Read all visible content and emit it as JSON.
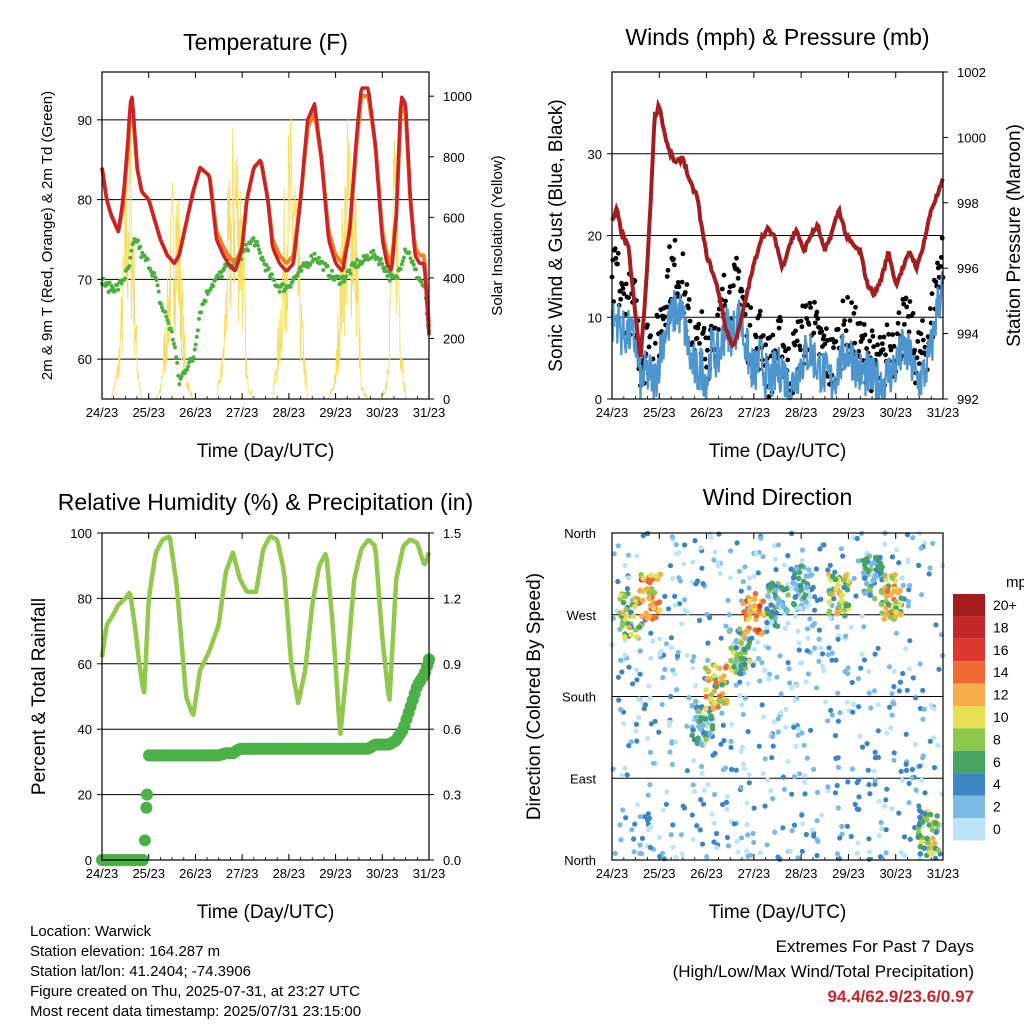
{
  "colors": {
    "temp_red": "#cc2229",
    "temp_orange": "#f57f20",
    "dewpoint_green": "#4daf3f",
    "solar_yellow": "#f7de63",
    "wind_blue": "#4c95cf",
    "gust_black": "#000000",
    "pressure_maroon": "#a31e21",
    "rh_green": "#92c84b",
    "precip_green": "#4bb045",
    "extremes_red": "#c3262b"
  },
  "x_ticks": [
    "24/23",
    "25/23",
    "26/23",
    "27/23",
    "28/23",
    "29/23",
    "30/23",
    "31/23"
  ],
  "chart_data": [
    {
      "type": "line",
      "title": "Temperature (F)",
      "xlabel": "Time (Day/UTC)",
      "ylabel": "2m & 9m T (Red, Orange) & 2m Td (Green)",
      "ylabel_right": "Solar Insolation (Yellow)",
      "ylim": [
        55,
        96
      ],
      "ylim_right": [
        0,
        1080
      ],
      "yticks": [
        60,
        70,
        80,
        90
      ],
      "yticks_right": [
        0,
        200,
        400,
        600,
        800,
        1000
      ],
      "x": [
        0,
        0.1,
        0.2,
        0.35,
        0.45,
        0.55,
        0.6,
        0.65,
        0.75,
        0.85,
        1.0,
        1.15,
        1.25,
        1.4,
        1.55,
        1.65,
        1.8,
        1.95,
        2.1,
        2.3,
        2.45,
        2.6,
        2.7,
        2.85,
        3.0,
        3.1,
        3.25,
        3.4,
        3.55,
        3.65,
        3.8,
        3.95,
        4.1,
        4.25,
        4.4,
        4.55,
        4.7,
        4.85,
        5.0,
        5.15,
        5.3,
        5.45,
        5.55,
        5.7,
        5.85,
        6.0,
        6.1,
        6.2,
        6.3,
        6.4,
        6.5,
        6.6,
        6.7,
        6.8,
        6.9,
        7.0
      ],
      "series": [
        {
          "name": "2m T",
          "color": "#cc2229",
          "values": [
            84,
            80,
            78,
            76,
            80,
            87,
            92,
            93,
            84,
            81,
            80,
            77,
            75,
            73,
            72,
            73,
            77,
            81,
            84,
            83,
            75,
            73,
            72,
            71,
            74,
            80,
            84,
            85,
            80,
            74,
            72,
            71,
            72,
            80,
            90,
            92,
            85,
            75,
            72,
            71,
            76,
            88,
            94,
            94,
            87,
            75,
            72,
            71,
            78,
            93,
            92,
            80,
            73,
            72,
            72,
            63
          ]
        },
        {
          "name": "9m T",
          "color": "#f57f20",
          "values": [
            84,
            80,
            78,
            76,
            79,
            86,
            91,
            92,
            84,
            81,
            80,
            77,
            75,
            73,
            72,
            73,
            77,
            81,
            84,
            83,
            76,
            74,
            73,
            72,
            74,
            80,
            84,
            85,
            80,
            75,
            73,
            72,
            73,
            80,
            89,
            91,
            85,
            76,
            73,
            72,
            76,
            87,
            93,
            93,
            87,
            76,
            73,
            72,
            78,
            92,
            91,
            80,
            74,
            73,
            73,
            64
          ]
        },
        {
          "name": "2m Td",
          "color": "#4daf3f",
          "values": [
            70,
            69,
            69,
            69,
            70,
            71,
            72,
            74,
            75,
            73,
            72,
            70,
            67,
            65,
            62,
            57,
            59,
            60,
            66,
            69,
            70,
            71,
            72,
            72,
            73,
            74,
            75,
            73,
            71,
            70,
            69,
            69,
            70,
            71,
            72,
            73,
            72,
            71,
            70,
            70,
            71,
            72,
            72,
            73,
            73,
            72,
            71,
            70,
            70,
            72,
            74,
            73,
            71,
            70,
            69,
            63
          ]
        },
        {
          "name": "Solar",
          "color": "#f7de63",
          "values": [
            0,
            0,
            0,
            150,
            500,
            900,
            1060,
            800,
            200,
            0,
            0,
            0,
            40,
            400,
            900,
            700,
            100,
            0,
            0,
            0,
            0,
            200,
            700,
            1050,
            800,
            100,
            0,
            0,
            0,
            0,
            300,
            900,
            1000,
            400,
            0,
            0,
            0,
            0,
            100,
            700,
            1050,
            700,
            50,
            0,
            0,
            0,
            100,
            700,
            1000,
            300,
            0,
            0,
            0,
            0,
            0,
            0
          ]
        }
      ]
    },
    {
      "type": "line",
      "title": "Winds (mph) & Pressure (mb)",
      "xlabel": "Time (Day/UTC)",
      "ylabel": "Sonic Wind & Gust (Blue, Black)",
      "ylabel_right": "Station Pressure (Maroon)",
      "ylim": [
        0,
        40
      ],
      "ylim_right": [
        992,
        1002
      ],
      "yticks": [
        0,
        10,
        20,
        30
      ],
      "yticks_right": [
        992,
        994,
        996,
        998,
        1000,
        1002
      ],
      "x": [
        0,
        0.1,
        0.2,
        0.35,
        0.5,
        0.6,
        0.7,
        0.8,
        0.9,
        1.0,
        1.1,
        1.2,
        1.35,
        1.5,
        1.65,
        1.8,
        1.9,
        2.0,
        2.1,
        2.25,
        2.4,
        2.55,
        2.7,
        2.85,
        3.0,
        3.15,
        3.3,
        3.45,
        3.6,
        3.75,
        3.9,
        4.05,
        4.2,
        4.35,
        4.5,
        4.65,
        4.8,
        4.95,
        5.1,
        5.25,
        5.4,
        5.55,
        5.7,
        5.85,
        6.0,
        6.15,
        6.3,
        6.45,
        6.6,
        6.75,
        6.9,
        7.0
      ],
      "series": [
        {
          "name": "Pressure",
          "color": "#a31e21",
          "values": [
            997.4,
            997.8,
            997.1,
            996.6,
            994.5,
            993.2,
            995.0,
            997.5,
            1000.6,
            1001.0,
            1000.2,
            999.6,
            999.2,
            999.4,
            998.6,
            998.2,
            997.2,
            996.4,
            996.0,
            995.3,
            994.2,
            993.6,
            994.2,
            995.2,
            996.1,
            996.9,
            997.2,
            996.9,
            996.0,
            996.7,
            997.2,
            996.5,
            997.0,
            997.3,
            996.5,
            997.1,
            997.8,
            997.0,
            996.7,
            996.5,
            995.5,
            995.2,
            995.7,
            996.5,
            995.5,
            996.0,
            996.5,
            996.0,
            996.8,
            997.8,
            998.3,
            998.7
          ]
        },
        {
          "name": "Wind",
          "color": "#4c95cf",
          "values": [
            9,
            10,
            8,
            8,
            7,
            2,
            3,
            3,
            2,
            5,
            8,
            9,
            11,
            10,
            5,
            3,
            4,
            2,
            6,
            5,
            9,
            8,
            10,
            6,
            3,
            5,
            2,
            3,
            4,
            1,
            3,
            5,
            6,
            4,
            3,
            2,
            4,
            6,
            5,
            3,
            3,
            2,
            2,
            3,
            4,
            6,
            5,
            2,
            3,
            6,
            12,
            14
          ]
        },
        {
          "name": "Gust",
          "color": "#000000",
          "values": [
            13,
            16,
            12,
            12,
            11,
            5,
            6,
            7,
            5,
            8,
            12,
            15,
            16,
            14,
            8,
            6,
            7,
            5,
            9,
            8,
            13,
            12,
            15,
            9,
            6,
            8,
            4,
            5,
            7,
            3,
            6,
            8,
            10,
            7,
            6,
            4,
            7,
            9,
            8,
            6,
            6,
            4,
            4,
            6,
            7,
            9,
            8,
            5,
            6,
            9,
            16,
            18
          ]
        }
      ]
    },
    {
      "type": "line",
      "title": "Relative Humidity (%) & Precipitation (in)",
      "xlabel": "Time (Day/UTC)",
      "ylabel": "Percent & Total Rainfall",
      "ylim": [
        0,
        100
      ],
      "ylim_right": [
        0,
        1.5
      ],
      "yticks": [
        0,
        20,
        40,
        60,
        80,
        100
      ],
      "yticks_right": [
        "0.0",
        "0.3",
        "0.6",
        "0.9",
        "1.2",
        "1.5"
      ],
      "x": [
        0,
        0.1,
        0.2,
        0.35,
        0.5,
        0.6,
        0.7,
        0.8,
        0.9,
        1.0,
        1.15,
        1.3,
        1.45,
        1.6,
        1.8,
        1.95,
        2.1,
        2.3,
        2.5,
        2.65,
        2.8,
        2.95,
        3.1,
        3.3,
        3.45,
        3.6,
        3.75,
        3.9,
        4.05,
        4.2,
        4.35,
        4.5,
        4.65,
        4.8,
        4.95,
        5.1,
        5.25,
        5.4,
        5.55,
        5.7,
        5.85,
        6.0,
        6.15,
        6.3,
        6.45,
        6.6,
        6.75,
        6.9,
        7.0
      ],
      "series": [
        {
          "name": "RH",
          "color": "#92c84b",
          "values": [
            62,
            72,
            74,
            78,
            80,
            82,
            72,
            60,
            50,
            80,
            94,
            98,
            99,
            84,
            50,
            44,
            58,
            64,
            72,
            88,
            94,
            86,
            82,
            82,
            95,
            99,
            98,
            88,
            60,
            48,
            58,
            78,
            90,
            94,
            70,
            38,
            60,
            86,
            95,
            98,
            96,
            68,
            48,
            86,
            96,
            98,
            97,
            90,
            94
          ]
        },
        {
          "name": "Precip",
          "color": "#4bb045",
          "values": [
            0,
            0,
            0,
            0,
            0,
            0,
            0,
            0,
            0,
            0.48,
            0.48,
            0.48,
            0.48,
            0.48,
            0.48,
            0.48,
            0.48,
            0.48,
            0.48,
            0.49,
            0.49,
            0.51,
            0.51,
            0.51,
            0.51,
            0.51,
            0.51,
            0.51,
            0.51,
            0.51,
            0.51,
            0.51,
            0.51,
            0.51,
            0.51,
            0.51,
            0.51,
            0.51,
            0.51,
            0.51,
            0.53,
            0.53,
            0.53,
            0.55,
            0.6,
            0.7,
            0.8,
            0.85,
            0.92
          ]
        }
      ]
    },
    {
      "type": "scatter",
      "title": "Wind Direction",
      "xlabel": "Time (Day/UTC)",
      "ylabel": "Direction (Colored By Speed)",
      "yticks": [
        "North",
        "East",
        "South",
        "West",
        "North"
      ],
      "legend_title": "mph",
      "legend_labels": [
        "20+",
        "18",
        "16",
        "14",
        "12",
        "10",
        "8",
        "6",
        "4",
        "2",
        "0"
      ],
      "legend_colors": [
        "#a51c1c",
        "#c42728",
        "#dc3830",
        "#ef6a35",
        "#f6ad4b",
        "#e7e052",
        "#8dc74b",
        "#48a462",
        "#3c85c2",
        "#79b9e4",
        "#bce4f8"
      ],
      "clusters": [
        {
          "x": 0.4,
          "dir": 270,
          "speed": 8
        },
        {
          "x": 0.8,
          "dir": 290,
          "speed": 12
        },
        {
          "x": 1.9,
          "dir": 150,
          "speed": 4
        },
        {
          "x": 2.2,
          "dir": 190,
          "speed": 10
        },
        {
          "x": 2.7,
          "dir": 230,
          "speed": 6
        },
        {
          "x": 3.0,
          "dir": 270,
          "speed": 12
        },
        {
          "x": 3.5,
          "dir": 280,
          "speed": 4
        },
        {
          "x": 4.0,
          "dir": 300,
          "speed": 3
        },
        {
          "x": 4.8,
          "dir": 290,
          "speed": 8
        },
        {
          "x": 5.5,
          "dir": 310,
          "speed": 4
        },
        {
          "x": 5.9,
          "dir": 290,
          "speed": 10
        },
        {
          "x": 6.7,
          "dir": 30,
          "speed": 8
        }
      ]
    }
  ],
  "info": {
    "location": "Location: Warwick",
    "elevation": "Station elevation: 164.287 m",
    "latlon": "Station lat/lon: 41.2404; -74.3906",
    "created": "Figure created on Thu, 2025-07-31, at 23:27 UTC",
    "recent": "Most recent data timestamp: 2025/07/31 23:15:00"
  },
  "extremes": {
    "line1": "Extremes For Past 7 Days",
    "line2": "(High/Low/Max Wind/Total Precipitation)",
    "values": "94.4/62.9/23.6/0.97"
  }
}
